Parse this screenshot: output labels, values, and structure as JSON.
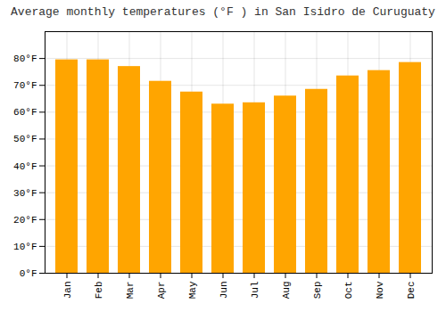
{
  "chart_data": {
    "type": "bar",
    "title": "Average monthly temperatures (°F ) in San Isidro de Curuguaty",
    "categories": [
      "Jan",
      "Feb",
      "Mar",
      "Apr",
      "May",
      "Jun",
      "Jul",
      "Aug",
      "Sep",
      "Oct",
      "Nov",
      "Dec"
    ],
    "values": [
      79.5,
      79.5,
      77.0,
      71.5,
      67.5,
      63.0,
      63.5,
      66.0,
      68.5,
      73.5,
      75.5,
      78.5
    ],
    "color": "#FFA500",
    "ylim": [
      0,
      90
    ],
    "yticks": [
      {
        "value": 0,
        "label": "0°F"
      },
      {
        "value": 10,
        "label": "10°F"
      },
      {
        "value": 20,
        "label": "20°F"
      },
      {
        "value": 30,
        "label": "30°F"
      },
      {
        "value": 40,
        "label": "40°F"
      },
      {
        "value": 50,
        "label": "50°F"
      },
      {
        "value": 60,
        "label": "60°F"
      },
      {
        "value": 70,
        "label": "70°F"
      },
      {
        "value": 80,
        "label": "80°F"
      }
    ],
    "grid": true
  }
}
